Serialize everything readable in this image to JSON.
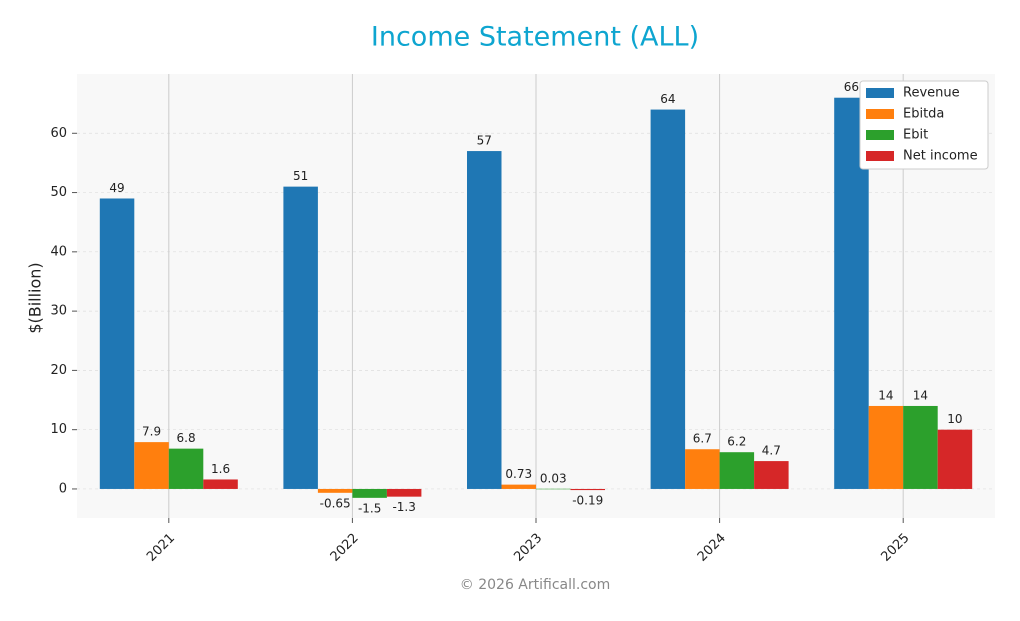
{
  "chart_data": {
    "type": "bar",
    "title": "Income Statement (ALL)",
    "y_label": "$(Billion)",
    "footer": "© 2026 Artificall.com",
    "categories": [
      "2021",
      "2022",
      "2023",
      "2024",
      "2025"
    ],
    "series": [
      {
        "name": "Revenue",
        "color": "#1f77b4",
        "values": [
          49,
          51,
          57,
          64,
          66
        ]
      },
      {
        "name": "Ebitda",
        "color": "#ff7f0e",
        "values": [
          7.9,
          -0.65,
          0.73,
          6.7,
          14
        ]
      },
      {
        "name": "Ebit",
        "color": "#2ca02c",
        "values": [
          6.8,
          -1.5,
          0.03,
          6.2,
          14
        ]
      },
      {
        "name": "Net income",
        "color": "#d62728",
        "values": [
          1.6,
          -1.3,
          -0.19,
          4.7,
          10
        ]
      }
    ],
    "ylim": [
      -4.9,
      70
    ],
    "yticks": [
      0,
      10,
      20,
      30,
      40,
      50,
      60
    ],
    "grid": true,
    "legend": "upper right"
  }
}
